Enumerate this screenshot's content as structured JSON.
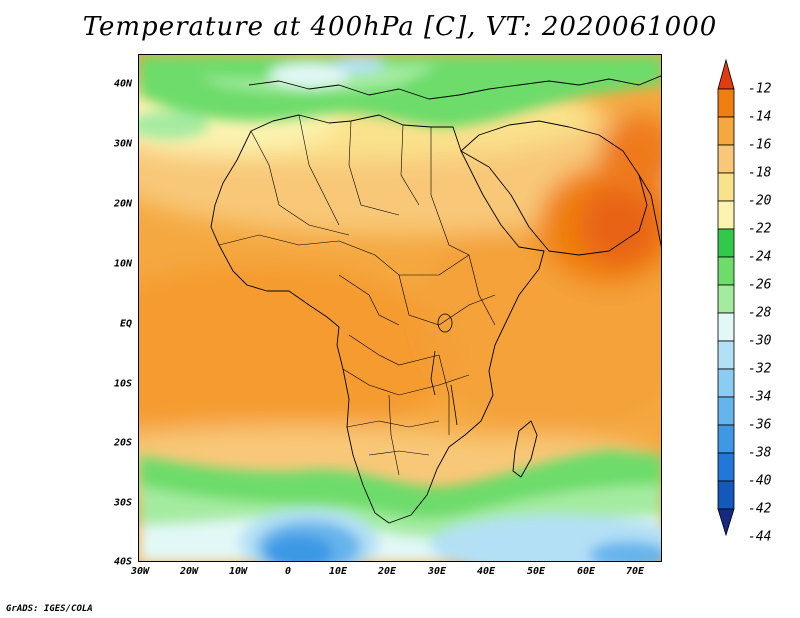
{
  "title": "Temperature at 400hPa [C], VT: 2020061000",
  "credit": "GrADS: IGES/COLA",
  "map": {
    "projection": "latlon",
    "lon_range": [
      -30,
      75
    ],
    "lat_range": [
      -40,
      45
    ],
    "lon_ticks": [
      "30W",
      "20W",
      "10W",
      "0",
      "10E",
      "20E",
      "30E",
      "40E",
      "50E",
      "60E",
      "70E"
    ],
    "lat_ticks": [
      "40N",
      "30N",
      "20N",
      "10N",
      "EQ",
      "10S",
      "20S",
      "30S",
      "40S"
    ],
    "features": [
      "coastlines",
      "country-borders"
    ],
    "variable": "temperature-400hPa",
    "units": "C"
  },
  "colorbar": {
    "labels": [
      "-12",
      "-14",
      "-16",
      "-18",
      "-20",
      "-22",
      "-24",
      "-26",
      "-28",
      "-30",
      "-32",
      "-34",
      "-36",
      "-38",
      "-40",
      "-42",
      "-44"
    ],
    "colors": [
      "#e03c10",
      "#f07f10",
      "#f5a840",
      "#f8c878",
      "#fae28c",
      "#fcf3b0",
      "#34c84a",
      "#6ddc6a",
      "#a4eba0",
      "#e2f8f6",
      "#b4e0f5",
      "#8ccbf2",
      "#66b4ec",
      "#3e98e4",
      "#2278d8",
      "#1458bc",
      "#142a80"
    ]
  }
}
